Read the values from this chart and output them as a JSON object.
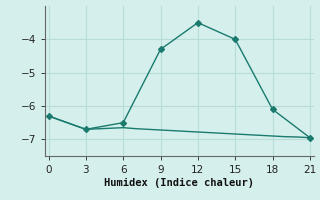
{
  "xlabel": "Humidex (Indice chaleur)",
  "bg_color": "#d5f0ec",
  "grid_color": "#b8ddd8",
  "line_color": "#1a7a6e",
  "line1_x": [
    0,
    3,
    6,
    9,
    12,
    15,
    18,
    21
  ],
  "line1_y": [
    -6.3,
    -6.7,
    -6.5,
    -4.3,
    -3.5,
    -4.0,
    -6.1,
    -6.95
  ],
  "line2_x": [
    0,
    3,
    6,
    7,
    8,
    9,
    10,
    11,
    12,
    13,
    14,
    15,
    16,
    17,
    18,
    19,
    20,
    21
  ],
  "line2_y": [
    -6.3,
    -6.7,
    -6.65,
    -6.68,
    -6.7,
    -6.72,
    -6.74,
    -6.76,
    -6.78,
    -6.8,
    -6.82,
    -6.84,
    -6.86,
    -6.88,
    -6.9,
    -6.92,
    -6.93,
    -6.95
  ],
  "xlim": [
    -0.3,
    21.3
  ],
  "ylim": [
    -7.5,
    -3.0
  ],
  "xticks": [
    0,
    3,
    6,
    9,
    12,
    15,
    18,
    21
  ],
  "yticks": [
    -7,
    -6,
    -5,
    -4
  ],
  "label_fontsize": 7.5,
  "tick_fontsize": 7.5,
  "spine_color": "#666666"
}
